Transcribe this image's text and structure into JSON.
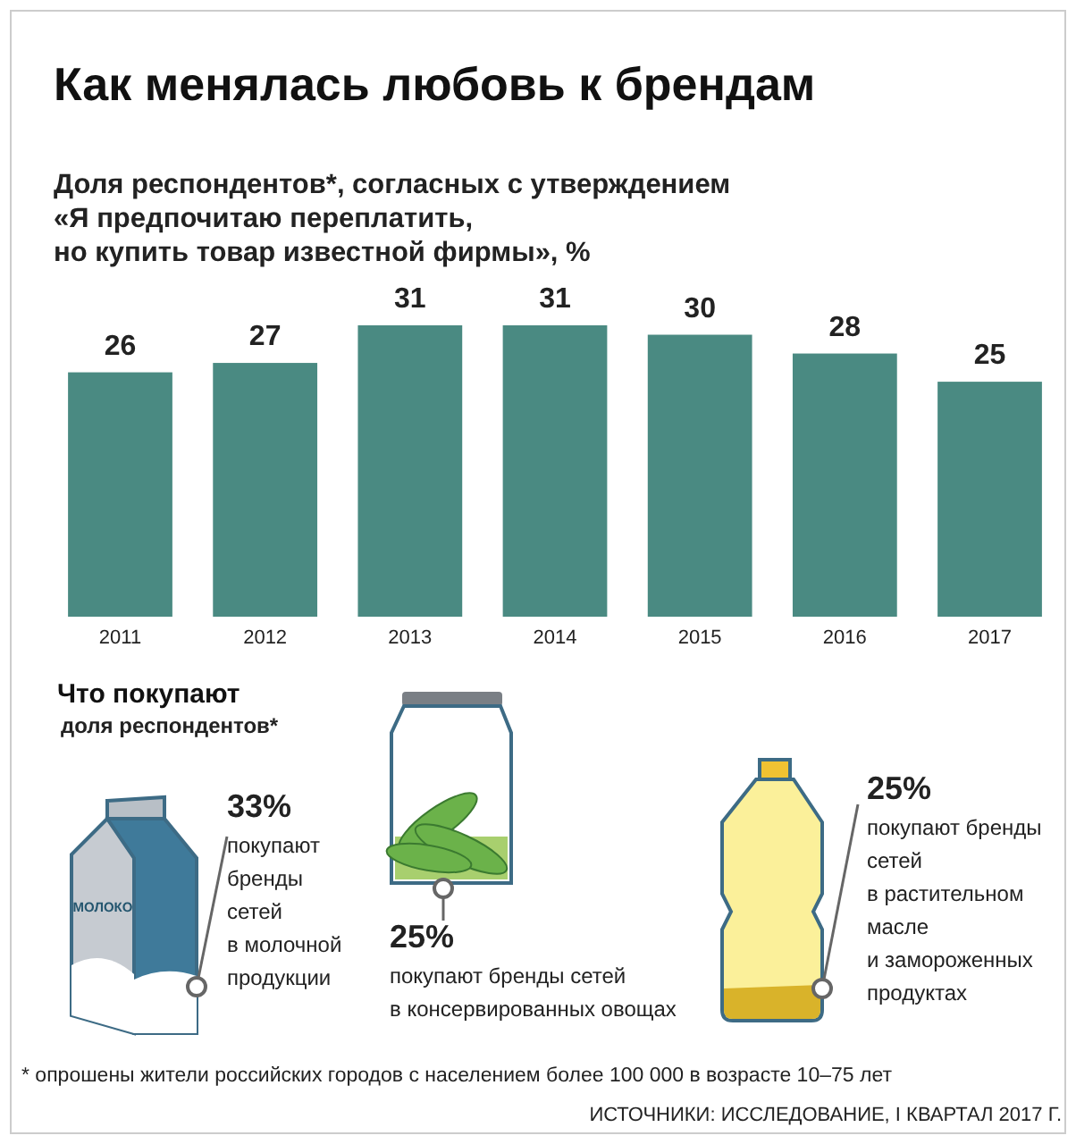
{
  "chart_data": [
    {
      "type": "bar",
      "title": "Как менялась любовь к брендам",
      "subtitle": "Доля респондентов*, согласных с утверждением\n«Я предпочитаю переплатить,\nно купить товар известной фирмы», %",
      "categories": [
        "2011",
        "2012",
        "2013",
        "2014",
        "2015",
        "2016",
        "2017"
      ],
      "values": [
        26,
        27,
        31,
        31,
        30,
        28,
        25
      ],
      "color": "#4a8a82",
      "data_labels": true
    },
    {
      "type": "other",
      "title": "Что покупают",
      "subtitle": "доля респондентов*",
      "categories": [
        "покупают\nбренды\nсетей\nв молочной\nпродукции",
        "покупают бренды сетей\nв консервированных овощах",
        "покупают бренды\nсетей\nв растительном\nмасле\nи замороженных\nпродуктах"
      ],
      "values": [
        33,
        25,
        25
      ],
      "value_labels": [
        "33%",
        "25%",
        "25%"
      ],
      "annotations": [
        "* опрошены жители российских городов с населением более 100 000 в возрасте 10–75 лет",
        "ИСТОЧНИКИ: ИССЛЕДОВАНИЕ, I КВАРТАЛ 2017 Г.",
        "МОЛОКО"
      ]
    }
  ]
}
